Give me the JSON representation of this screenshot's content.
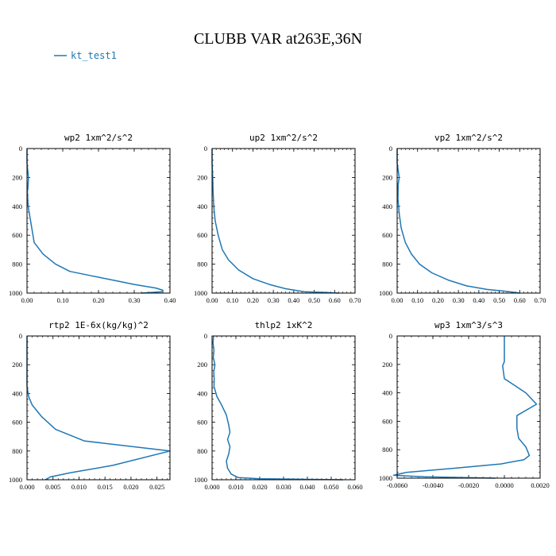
{
  "title": "CLUBB VAR at263E,36N",
  "legend": {
    "label": "kt_test1",
    "color": "#1f77b4"
  },
  "chart_data": [
    {
      "type": "line",
      "title": "wp2   1xm^2/s^2",
      "xlim": [
        0,
        0.4
      ],
      "ylim": [
        0,
        1000
      ],
      "yaxis_inverted": true,
      "xticks": [
        0,
        0.1,
        0.2,
        0.3,
        0.4
      ],
      "xtick_labels": [
        "0.00",
        "0.10",
        "0.20",
        "0.30",
        "0.40"
      ],
      "yticks": [
        0,
        200,
        400,
        600,
        800,
        1000
      ],
      "ytick_labels": [
        "0",
        "200",
        "400",
        "600",
        "800",
        "1000"
      ],
      "series": [
        {
          "x": [
            0.0,
            0.0,
            0.004,
            0.003,
            0.001,
            0.003,
            0.01,
            0.02,
            0.045,
            0.08,
            0.12,
            0.18,
            0.24,
            0.3,
            0.36,
            0.38,
            0.38,
            0.32
          ],
          "y": [
            0,
            100,
            200,
            250,
            300,
            400,
            500,
            650,
            730,
            800,
            850,
            880,
            910,
            940,
            965,
            980,
            990,
            1000
          ]
        }
      ]
    },
    {
      "type": "line",
      "title": "up2   1xm^2/s^2",
      "xlim": [
        0,
        0.7
      ],
      "ylim": [
        0,
        1000
      ],
      "yaxis_inverted": true,
      "xticks": [
        0,
        0.1,
        0.2,
        0.3,
        0.4,
        0.5,
        0.6,
        0.7
      ],
      "xtick_labels": [
        "0.00",
        "0.10",
        "0.20",
        "0.30",
        "0.40",
        "0.50",
        "0.60",
        "0.70"
      ],
      "yticks": [
        0,
        200,
        400,
        600,
        800,
        1000
      ],
      "ytick_labels": [
        "0",
        "200",
        "400",
        "600",
        "800",
        "1000"
      ],
      "series": [
        {
          "x": [
            0.0,
            0.0,
            0.003,
            0.005,
            0.008,
            0.015,
            0.03,
            0.05,
            0.08,
            0.13,
            0.2,
            0.28,
            0.36,
            0.45,
            0.55,
            0.62
          ],
          "y": [
            0,
            100,
            200,
            300,
            400,
            500,
            600,
            700,
            770,
            840,
            900,
            940,
            970,
            990,
            995,
            1000
          ]
        }
      ]
    },
    {
      "type": "line",
      "title": "vp2   1xm^2/s^2",
      "xlim": [
        0,
        0.7
      ],
      "ylim": [
        0,
        1000
      ],
      "yaxis_inverted": true,
      "xticks": [
        0,
        0.1,
        0.2,
        0.3,
        0.4,
        0.5,
        0.6,
        0.7
      ],
      "xtick_labels": [
        "0.00",
        "0.10",
        "0.20",
        "0.30",
        "0.40",
        "0.50",
        "0.60",
        "0.70"
      ],
      "yticks": [
        0,
        200,
        400,
        600,
        800,
        1000
      ],
      "ytick_labels": [
        "0",
        "200",
        "400",
        "600",
        "800",
        "1000"
      ],
      "series": [
        {
          "x": [
            0.0,
            0.0,
            0.01,
            0.005,
            0.004,
            0.01,
            0.02,
            0.04,
            0.07,
            0.11,
            0.17,
            0.25,
            0.34,
            0.44,
            0.55,
            0.6
          ],
          "y": [
            0,
            100,
            200,
            250,
            350,
            450,
            550,
            650,
            730,
            800,
            860,
            910,
            950,
            975,
            990,
            1000
          ]
        }
      ]
    },
    {
      "type": "line",
      "title": "rtp2   1E-6x(kg/kg)^2",
      "xlim": [
        0,
        0.0275
      ],
      "ylim": [
        0,
        1000
      ],
      "yaxis_inverted": true,
      "xticks": [
        0,
        0.005,
        0.01,
        0.015,
        0.02,
        0.025
      ],
      "xtick_labels": [
        "0.000",
        "0.005",
        "0.010",
        "0.015",
        "0.020",
        "0.025"
      ],
      "yticks": [
        0,
        200,
        400,
        600,
        800,
        1000
      ],
      "ytick_labels": [
        "0",
        "200",
        "400",
        "600",
        "800",
        "1000"
      ],
      "series": [
        {
          "x": [
            0.0,
            0.0,
            0.0,
            0.0003,
            0.001,
            0.0028,
            0.0055,
            0.011,
            0.0275,
            0.0165,
            0.0085,
            0.0045,
            0.0035
          ],
          "y": [
            0,
            200,
            350,
            420,
            480,
            560,
            650,
            730,
            800,
            900,
            950,
            980,
            1000
          ]
        }
      ]
    },
    {
      "type": "line",
      "title": "thlp2   1xK^2",
      "xlim": [
        0,
        0.06
      ],
      "ylim": [
        0,
        1000
      ],
      "yaxis_inverted": true,
      "xticks": [
        0,
        0.01,
        0.02,
        0.03,
        0.04,
        0.05,
        0.06
      ],
      "xtick_labels": [
        "0.000",
        "0.010",
        "0.020",
        "0.030",
        "0.040",
        "0.050",
        "0.060"
      ],
      "yticks": [
        0,
        200,
        400,
        600,
        800,
        1000
      ],
      "ytick_labels": [
        "0",
        "200",
        "400",
        "600",
        "800",
        "1000"
      ],
      "series": [
        {
          "x": [
            0.0006,
            0.0004,
            0.0008,
            0.0005,
            0.0012,
            0.0007,
            0.0009,
            0.0008,
            0.002,
            0.004,
            0.006,
            0.007,
            0.0075,
            0.0065,
            0.0075,
            0.007,
            0.006,
            0.0065,
            0.008,
            0.011,
            0.02,
            0.04,
            0.055
          ],
          "y": [
            0,
            50,
            100,
            150,
            200,
            250,
            300,
            350,
            420,
            480,
            550,
            620,
            670,
            720,
            770,
            820,
            870,
            920,
            960,
            985,
            993,
            997,
            1000
          ]
        }
      ]
    },
    {
      "type": "line",
      "title": "wp3   1xm^3/s^3",
      "xlim": [
        -0.006,
        0.002
      ],
      "ylim": [
        0,
        1000
      ],
      "yaxis_inverted": true,
      "xticks": [
        -0.006,
        -0.004,
        -0.002,
        0.0,
        0.002
      ],
      "xtick_labels": [
        "-0.0060",
        "-0.0040",
        "-0.0020",
        "0.0000",
        "0.0020"
      ],
      "yticks": [
        0,
        200,
        400,
        600,
        800,
        1000
      ],
      "ytick_labels": [
        "0",
        "200",
        "400",
        "600",
        "800",
        "1000"
      ],
      "series": [
        {
          "x": [
            0.0,
            0.0,
            -0.0001,
            0.0,
            0.0006,
            0.0012,
            0.0018,
            0.0007,
            0.0007,
            0.0008,
            0.0012,
            0.0014,
            0.0011,
            -0.0002,
            -0.0028,
            -0.0055,
            -0.0062,
            -0.0045,
            -0.0005
          ],
          "y": [
            0,
            180,
            210,
            300,
            350,
            400,
            480,
            560,
            650,
            720,
            780,
            840,
            870,
            900,
            930,
            960,
            980,
            990,
            1000
          ]
        }
      ]
    }
  ]
}
